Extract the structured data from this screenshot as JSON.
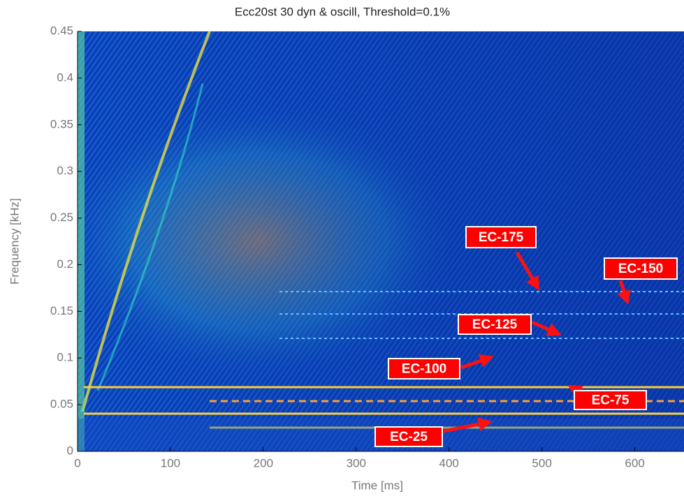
{
  "chart_data": {
    "type": "heatmap",
    "title": "Ecc20st 30 dyn & oscill, Threshold=0.1%",
    "xlabel": "Time [ms]",
    "ylabel": "Frequency [kHz]",
    "xlim": [
      0,
      653
    ],
    "xticks": [
      0,
      100,
      200,
      300,
      400,
      500,
      600
    ],
    "ylim": [
      0,
      0.45
    ],
    "yticks": [
      0,
      0.05,
      0.1,
      0.15,
      0.2,
      0.25,
      0.3,
      0.35,
      0.4,
      0.45
    ],
    "annotations": [
      "EC-175",
      "EC-150",
      "EC-125",
      "EC-100",
      "EC-75",
      "EC-25"
    ]
  }
}
